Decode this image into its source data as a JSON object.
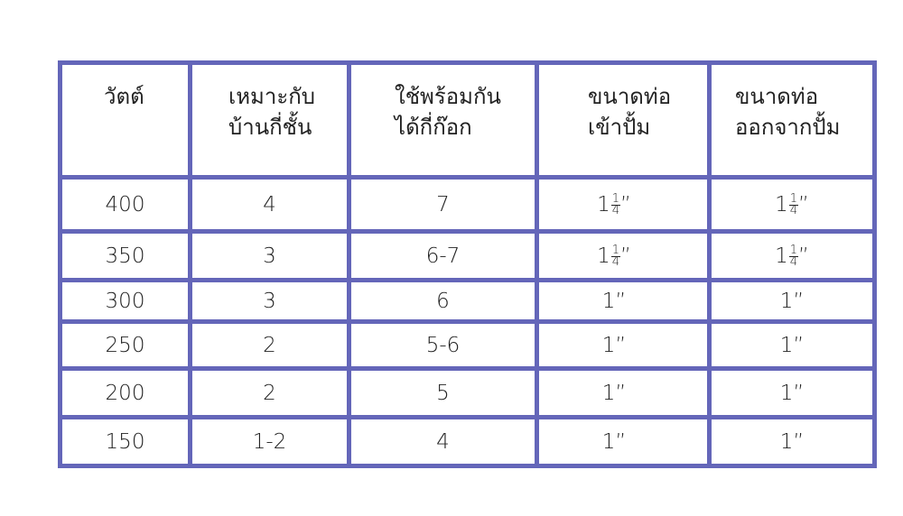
{
  "table": {
    "border_color": "#6466b9",
    "headers": [
      "วัตต์",
      "เหมาะกับ\nบ้านกี่ชั้น",
      "ใช้พร้อมกัน\nได้กี่ก๊อก",
      "ขนาดท่อ\nเข้าปั้ม",
      "ขนาดท่อ\nออกจากปั้ม"
    ],
    "rows": [
      {
        "watt": "400",
        "floors": "4",
        "taps": "7",
        "inlet": {
          "whole": "1",
          "num": "1",
          "den": "4",
          "mark": "”"
        },
        "outlet": {
          "whole": "1",
          "num": "1",
          "den": "4",
          "mark": "”"
        }
      },
      {
        "watt": "350",
        "floors": "3",
        "taps": "6-7",
        "inlet": {
          "whole": "1",
          "num": "1",
          "den": "4",
          "mark": "”"
        },
        "outlet": {
          "whole": "1",
          "num": "1",
          "den": "4",
          "mark": "”"
        }
      },
      {
        "watt": "300",
        "floors": "3",
        "taps": "6",
        "inlet": {
          "whole": "1",
          "mark": "”"
        },
        "outlet": {
          "whole": "1",
          "mark": "”"
        }
      },
      {
        "watt": "250",
        "floors": "2",
        "taps": "5-6",
        "inlet": {
          "whole": "1",
          "mark": "”"
        },
        "outlet": {
          "whole": "1",
          "mark": "”"
        }
      },
      {
        "watt": "200",
        "floors": "2",
        "taps": "5",
        "inlet": {
          "whole": "1",
          "mark": "”"
        },
        "outlet": {
          "whole": "1",
          "mark": "”"
        }
      },
      {
        "watt": "150",
        "floors": "1-2",
        "taps": "4",
        "inlet": {
          "whole": "1",
          "mark": "”"
        },
        "outlet": {
          "whole": "1",
          "mark": "”"
        }
      }
    ]
  }
}
